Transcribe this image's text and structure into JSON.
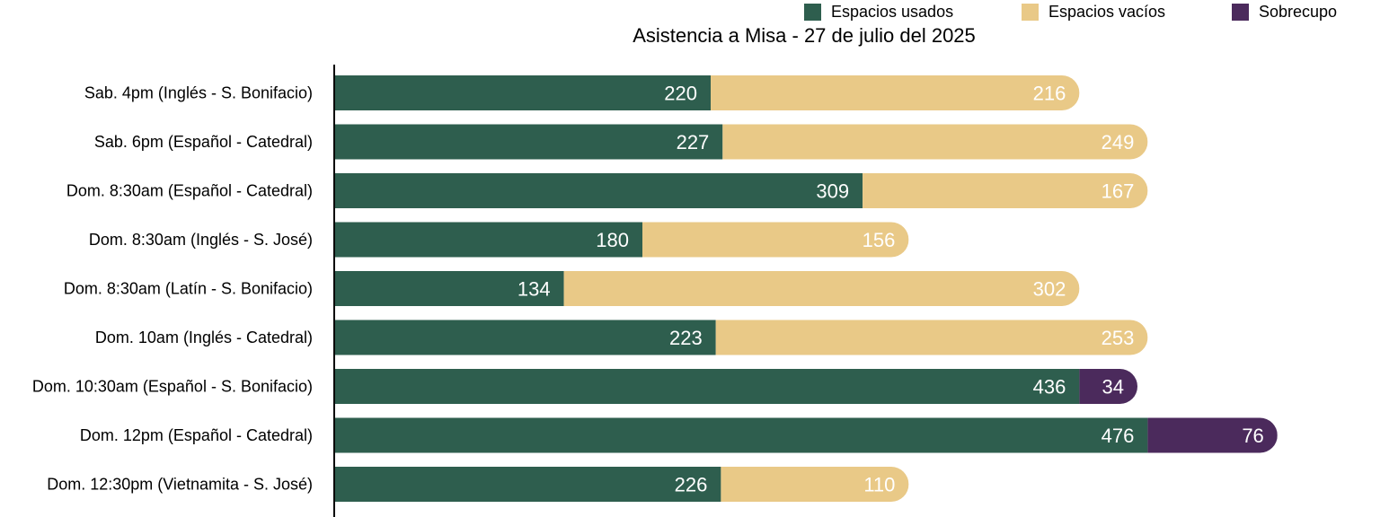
{
  "chart_data": {
    "type": "bar",
    "orientation": "horizontal",
    "stacked": true,
    "title": "Asistencia a Misa - 27 de julio del 2025",
    "categories": [
      "Sab. 4pm (Inglés - S. Bonifacio)",
      "Sab. 6pm (Español - Catedral)",
      "Dom. 8:30am (Español - Catedral)",
      "Dom. 8:30am (Inglés - S. José)",
      "Dom. 8:30am (Latín - S. Bonifacio)",
      "Dom. 10am (Inglés - Catedral)",
      "Dom. 10:30am (Español - S. Bonifacio)",
      "Dom. 12pm (Español - Catedral)",
      "Dom. 12:30pm (Vietnamita - S. José)"
    ],
    "series": [
      {
        "name": "Espacios usados",
        "color": "#2e5e4e",
        "values": [
          220,
          227,
          309,
          180,
          134,
          223,
          436,
          476,
          226
        ]
      },
      {
        "name": "Espacios vacíos",
        "color": "#e9c987",
        "values": [
          216,
          249,
          167,
          156,
          302,
          253,
          0,
          0,
          110
        ]
      },
      {
        "name": "Sobrecupo",
        "color": "#4b2a5c",
        "values": [
          0,
          0,
          0,
          0,
          0,
          0,
          34,
          76,
          0
        ]
      }
    ],
    "xlim": [
      0,
      556
    ],
    "legend_position": "top-right",
    "grid": false
  }
}
